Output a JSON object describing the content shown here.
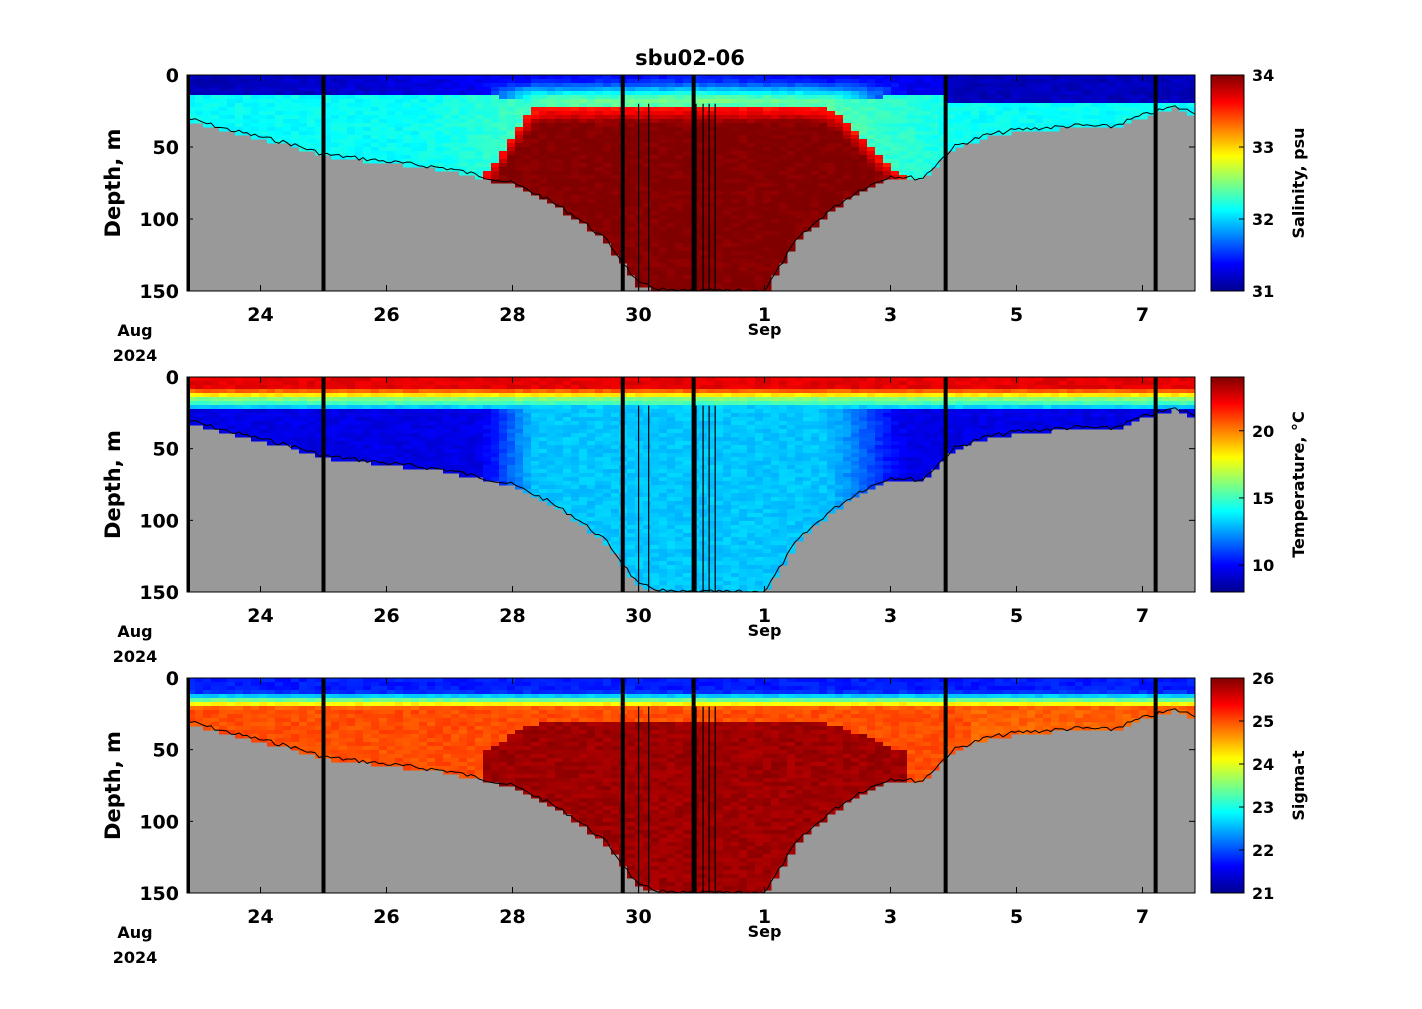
{
  "title": "sbu02-06",
  "colors": {
    "seafloor": "#999999",
    "background": "#ffffff",
    "colormap": "jet"
  },
  "x_axis": {
    "date_range": [
      "2024-08-22T20:00",
      "2024-09-07T20:00"
    ],
    "ticks": [
      {
        "date": "2024-08-24",
        "label": "24"
      },
      {
        "date": "2024-08-26",
        "label": "26"
      },
      {
        "date": "2024-08-28",
        "label": "28"
      },
      {
        "date": "2024-08-30",
        "label": "30"
      },
      {
        "date": "2024-09-01",
        "label": "1"
      },
      {
        "date": "2024-09-03",
        "label": "3"
      },
      {
        "date": "2024-09-05",
        "label": "5"
      },
      {
        "date": "2024-09-07",
        "label": "7"
      }
    ],
    "sub_labels": {
      "month_start": "Aug",
      "year": "2024",
      "month_change": "Sep"
    }
  },
  "chart_data": [
    {
      "type": "heatmap",
      "title": "sbu02-06",
      "ylabel": "Depth, m",
      "ylim": [
        150,
        0
      ],
      "yticks": [
        0,
        50,
        100,
        150
      ],
      "colorbar": {
        "label": "Salinity, psu",
        "range": [
          31,
          34
        ],
        "ticks": [
          31,
          32,
          33,
          34
        ]
      },
      "seafloor_depth_m": {
        "dates": [
          "2024-08-22T20:00",
          "2024-08-23T12:00",
          "2024-08-24T12:00",
          "2024-08-25T00:00",
          "2024-08-26T00:00",
          "2024-08-27T00:00",
          "2024-08-27T12:00",
          "2024-08-28T00:00",
          "2024-08-28T12:00",
          "2024-08-29T00:00",
          "2024-08-29T12:00",
          "2024-08-30T00:00",
          "2024-08-30T12:00",
          "2024-09-01T00:00",
          "2024-09-01T12:00",
          "2024-09-02T00:00",
          "2024-09-02T12:00",
          "2024-09-03T00:00",
          "2024-09-03T12:00",
          "2024-09-04T00:00",
          "2024-09-04T12:00",
          "2024-09-05T00:00",
          "2024-09-06T00:00",
          "2024-09-06T12:00",
          "2024-09-07T00:00",
          "2024-09-07T12:00",
          "2024-09-07T20:00"
        ],
        "depth": [
          30,
          38,
          48,
          55,
          60,
          65,
          70,
          75,
          85,
          98,
          115,
          145,
          150,
          150,
          115,
          95,
          80,
          70,
          72,
          50,
          42,
          38,
          35,
          36,
          28,
          22,
          26
        ]
      },
      "profile_dates": [
        "2024-08-25T00:00",
        "2024-08-29T18:00",
        "2024-08-30T21:00",
        "2024-09-03T21:00",
        "2024-09-07T05:00"
      ]
    },
    {
      "type": "heatmap",
      "ylabel": "Depth, m",
      "ylim": [
        150,
        0
      ],
      "yticks": [
        0,
        50,
        100,
        150
      ],
      "colorbar": {
        "label": "Temperature, °C",
        "range": [
          8,
          24
        ],
        "ticks": [
          10,
          15,
          20
        ]
      }
    },
    {
      "type": "heatmap",
      "ylabel": "Depth, m",
      "ylim": [
        150,
        0
      ],
      "yticks": [
        0,
        50,
        100,
        150
      ],
      "colorbar": {
        "label": "Sigma-t",
        "range": [
          21,
          26
        ],
        "ticks": [
          21,
          22,
          23,
          24,
          25,
          26
        ]
      }
    }
  ]
}
